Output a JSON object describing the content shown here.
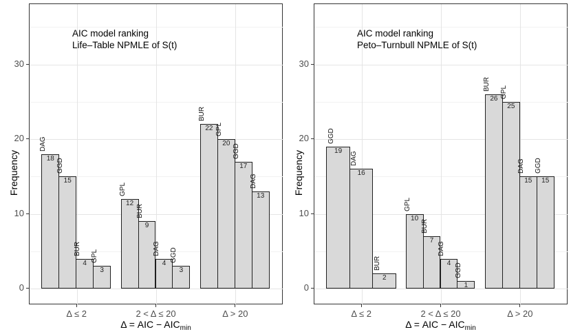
{
  "figure": {
    "background": "#ffffff"
  },
  "style": {
    "bar_fill": "#d9d9d9",
    "bar_stroke": "#1f1f1f",
    "grid_major": "#e4e4e4",
    "grid_minor": "#f2f2f2",
    "panel_border": "#333333",
    "tick_color": "#333333",
    "tick_label_color": "#4d4d4d",
    "text_color": "#000000"
  },
  "chart_data": [
    {
      "type": "bar",
      "title_lines": [
        "AIC model ranking",
        "Life–Table NPMLE of S(t)"
      ],
      "ylabel": "Frequency",
      "xlabel_main": "Δ = AIC − AIC",
      "xlabel_sub": "min",
      "categories": [
        "Δ ≤ 2",
        "2 < Δ ≤ 20",
        "Δ > 20"
      ],
      "groups": [
        {
          "bars": [
            {
              "model": "DAG",
              "value": 18
            },
            {
              "model": "GGD",
              "value": 15
            },
            {
              "model": "BUR",
              "value": 4
            },
            {
              "model": "GPL",
              "value": 3
            }
          ]
        },
        {
          "bars": [
            {
              "model": "GPL",
              "value": 12
            },
            {
              "model": "BUR",
              "value": 9
            },
            {
              "model": "DAG",
              "value": 4
            },
            {
              "model": "GGD",
              "value": 3
            }
          ]
        },
        {
          "bars": [
            {
              "model": "BUR",
              "value": 22
            },
            {
              "model": "GPL",
              "value": 20
            },
            {
              "model": "GGD",
              "value": 17
            },
            {
              "model": "DAG",
              "value": 13
            }
          ]
        }
      ],
      "y_breaks": [
        0,
        10,
        20,
        30
      ],
      "y_minor": [
        5,
        15,
        25,
        35
      ],
      "y_range": [
        -2.2,
        38.2
      ],
      "grid": "major+minor",
      "legend": "none"
    },
    {
      "type": "bar",
      "title_lines": [
        "AIC model ranking",
        "Peto–Turnbull NPMLE of S(t)"
      ],
      "ylabel": "Frequency",
      "xlabel_main": "Δ = AIC − AIC",
      "xlabel_sub": "min",
      "categories": [
        "Δ ≤ 2",
        "2 < Δ ≤ 20",
        "Δ > 20"
      ],
      "groups": [
        {
          "bars": [
            {
              "model": "GGD",
              "value": 19
            },
            {
              "model": "DAG",
              "value": 16
            },
            {
              "model": "BUR",
              "value": 2
            }
          ]
        },
        {
          "bars": [
            {
              "model": "GPL",
              "value": 10
            },
            {
              "model": "BUR",
              "value": 7
            },
            {
              "model": "DAG",
              "value": 4
            },
            {
              "model": "GGD",
              "value": 1
            }
          ]
        },
        {
          "bars": [
            {
              "model": "BUR",
              "value": 26
            },
            {
              "model": "GPL",
              "value": 25
            },
            {
              "model": "DAG",
              "value": 15
            },
            {
              "model": "GGD",
              "value": 15
            }
          ]
        }
      ],
      "y_breaks": [
        0,
        10,
        20,
        30
      ],
      "y_minor": [
        5,
        15,
        25,
        35
      ],
      "y_range": [
        -2.2,
        38.2
      ],
      "grid": "major+minor",
      "legend": "none"
    }
  ]
}
